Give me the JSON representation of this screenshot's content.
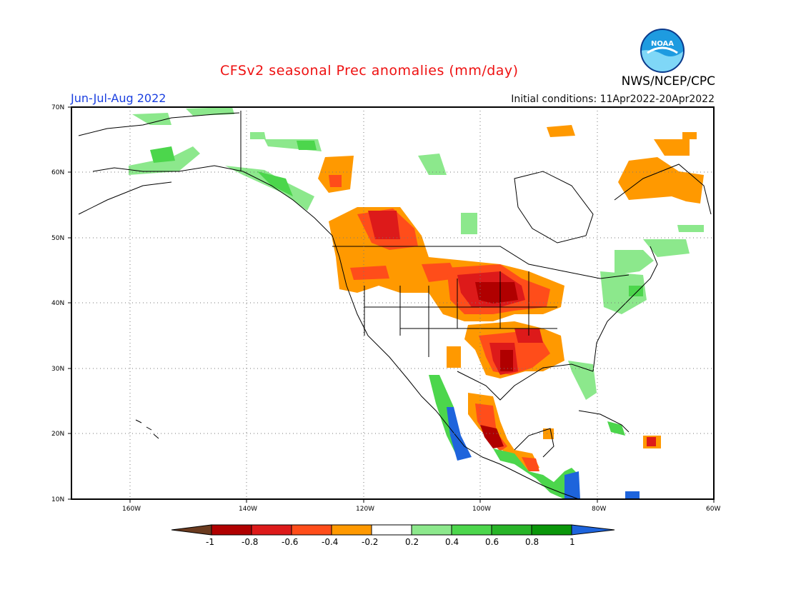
{
  "header": {
    "title": "CFSv2 seasonal Prec anomalies (mm/day)",
    "season": "Jun-Jul-Aug 2022",
    "init": "Initial conditions: 11Apr2022-20Apr2022",
    "agency": "NWS/NCEP/CPC",
    "logo_text": "NOAA"
  },
  "axes": {
    "lat_labels": [
      "70N",
      "60N",
      "50N",
      "40N",
      "30N",
      "20N",
      "10N"
    ],
    "lon_labels": [
      "160W",
      "140W",
      "120W",
      "100W",
      "80W",
      "60W"
    ],
    "lat_range": [
      10,
      70
    ],
    "lon_range": [
      -170,
      -60
    ]
  },
  "colorbar": {
    "labels": [
      "-1",
      "-0.8",
      "-0.6",
      "-0.4",
      "-0.2",
      "0.2",
      "0.4",
      "0.6",
      "0.8",
      "1"
    ],
    "colors": [
      "#6b3b1f",
      "#b00000",
      "#dd1a1a",
      "#ff4d1a",
      "#ff9900",
      "#ffffff",
      "#8ce88c",
      "#4cd64c",
      "#28b428",
      "#0a960a",
      "#1e64dc"
    ]
  },
  "anomaly_regions": [
    {
      "name": "dry-northern-plains",
      "color": "#ff9900"
    },
    {
      "name": "very-dry-central",
      "color": "#b00000"
    },
    {
      "name": "wet-mexico-coast",
      "color": "#1e64dc"
    }
  ]
}
